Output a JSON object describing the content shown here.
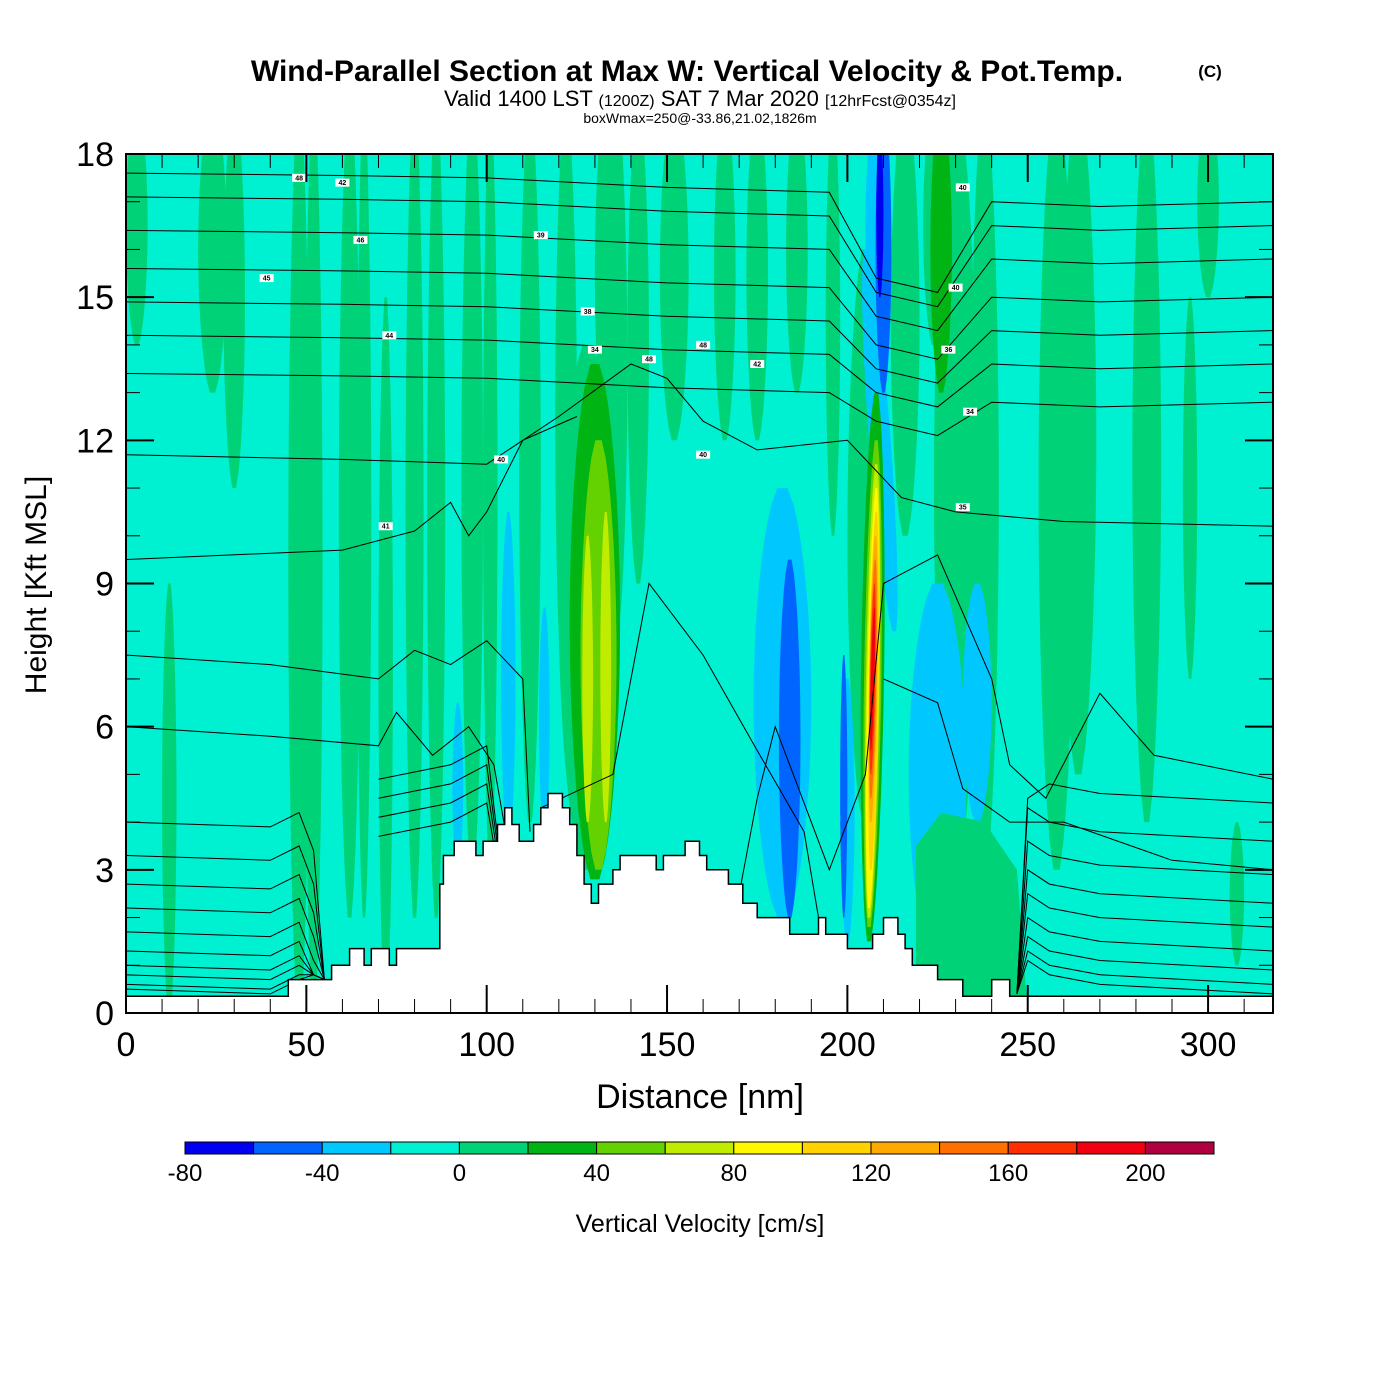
{
  "chart_data": {
    "type": "heatmap",
    "title": "Wind-Parallel Section at Max W: Vertical Velocity & Pot.Temp.",
    "title_suffix": "(C)",
    "subtitle_parts": [
      "Valid 1400 LST",
      "(1200Z)",
      "SAT 7 Mar 2020",
      "[12hrFcst@0354z]"
    ],
    "subtitle2": "boxWmax=250@-33.86,21.02,1826m",
    "xlabel": "Distance [nm]",
    "ylabel": "Height [Kft MSL]",
    "xlim": [
      0,
      318
    ],
    "ylim": [
      0,
      18
    ],
    "xticks": [
      0,
      50,
      100,
      150,
      200,
      250,
      300
    ],
    "xtick_labels": [
      "0",
      "50",
      "100",
      "150",
      "200",
      "250",
      "300"
    ],
    "yticks": [
      0,
      3,
      6,
      9,
      12,
      15,
      18
    ],
    "ytick_labels": [
      "0",
      "3",
      "6",
      "9",
      "12",
      "15",
      "18"
    ],
    "colorbar": {
      "label": "Vertical Velocity [cm/s]",
      "bounds": [
        -80,
        220
      ],
      "bin_width": 20,
      "tick_values": [
        -80,
        -40,
        0,
        40,
        80,
        120,
        160,
        200
      ],
      "tick_labels": [
        "-80",
        "-40",
        "0",
        "40",
        "80",
        "120",
        "160",
        "200"
      ],
      "colors": [
        "#0000f0",
        "#0064ff",
        "#00c8ff",
        "#00f0d2",
        "#00d278",
        "#00b414",
        "#64d200",
        "#c0ec00",
        "#fff800",
        "#ffd200",
        "#ffaa00",
        "#ff7000",
        "#ff3000",
        "#f00010",
        "#b00040"
      ]
    },
    "background_value_color": "#00f0d2",
    "terrain_color": "#ffffff",
    "terrain_profile_kft": [
      [
        0,
        0.35
      ],
      [
        45,
        0.35
      ],
      [
        45,
        0.7
      ],
      [
        57,
        0.7
      ],
      [
        57,
        1.0
      ],
      [
        62,
        1.0
      ],
      [
        62,
        1.35
      ],
      [
        66,
        1.35
      ],
      [
        66,
        1.0
      ],
      [
        68,
        1.0
      ],
      [
        68,
        1.35
      ],
      [
        73,
        1.35
      ],
      [
        73,
        1.0
      ],
      [
        75,
        1.0
      ],
      [
        75,
        1.35
      ],
      [
        87,
        1.35
      ],
      [
        87,
        2.7
      ],
      [
        88,
        2.7
      ],
      [
        88,
        3.3
      ],
      [
        91,
        3.3
      ],
      [
        91,
        3.6
      ],
      [
        97,
        3.6
      ],
      [
        97,
        3.3
      ],
      [
        99,
        3.3
      ],
      [
        99,
        3.6
      ],
      [
        103,
        3.6
      ],
      [
        103,
        3.95
      ],
      [
        105,
        3.95
      ],
      [
        105,
        4.3
      ],
      [
        107,
        4.3
      ],
      [
        107,
        3.95
      ],
      [
        109,
        3.95
      ],
      [
        109,
        3.6
      ],
      [
        113,
        3.6
      ],
      [
        113,
        3.95
      ],
      [
        115,
        3.95
      ],
      [
        115,
        4.3
      ],
      [
        117,
        4.3
      ],
      [
        117,
        4.6
      ],
      [
        121,
        4.6
      ],
      [
        121,
        4.3
      ],
      [
        123,
        4.3
      ],
      [
        123,
        3.95
      ],
      [
        125,
        3.95
      ],
      [
        125,
        3.3
      ],
      [
        127,
        3.3
      ],
      [
        127,
        2.7
      ],
      [
        129,
        2.7
      ],
      [
        129,
        2.3
      ],
      [
        131,
        2.3
      ],
      [
        131,
        2.7
      ],
      [
        135,
        2.7
      ],
      [
        135,
        3.0
      ],
      [
        137,
        3.0
      ],
      [
        137,
        3.3
      ],
      [
        147,
        3.3
      ],
      [
        147,
        3.0
      ],
      [
        149,
        3.0
      ],
      [
        149,
        3.3
      ],
      [
        155,
        3.3
      ],
      [
        155,
        3.6
      ],
      [
        159,
        3.6
      ],
      [
        159,
        3.3
      ],
      [
        161,
        3.3
      ],
      [
        161,
        3.0
      ],
      [
        167,
        3.0
      ],
      [
        167,
        2.7
      ],
      [
        171,
        2.7
      ],
      [
        171,
        2.3
      ],
      [
        175,
        2.3
      ],
      [
        175,
        2.0
      ],
      [
        184,
        2.0
      ],
      [
        184,
        1.65
      ],
      [
        192,
        1.65
      ],
      [
        192,
        2.0
      ],
      [
        194,
        2.0
      ],
      [
        194,
        1.65
      ],
      [
        200,
        1.65
      ],
      [
        200,
        1.35
      ],
      [
        207,
        1.35
      ],
      [
        207,
        1.65
      ],
      [
        210,
        1.65
      ],
      [
        210,
        2.0
      ],
      [
        214,
        2.0
      ],
      [
        214,
        1.65
      ],
      [
        216,
        1.65
      ],
      [
        216,
        1.35
      ],
      [
        218,
        1.35
      ],
      [
        218,
        1.0
      ],
      [
        225,
        1.0
      ],
      [
        225,
        0.7
      ],
      [
        232,
        0.7
      ],
      [
        232,
        0.35
      ],
      [
        240,
        0.35
      ],
      [
        240,
        0.7
      ],
      [
        245,
        0.7
      ],
      [
        245,
        0.35
      ],
      [
        318,
        0.35
      ]
    ],
    "contour_labels": [
      "48",
      "46",
      "45",
      "44",
      "42",
      "40",
      "40",
      "41",
      "39",
      "38",
      "34",
      "48",
      "48",
      "42",
      "40",
      "40",
      "36",
      "34",
      "35"
    ]
  }
}
